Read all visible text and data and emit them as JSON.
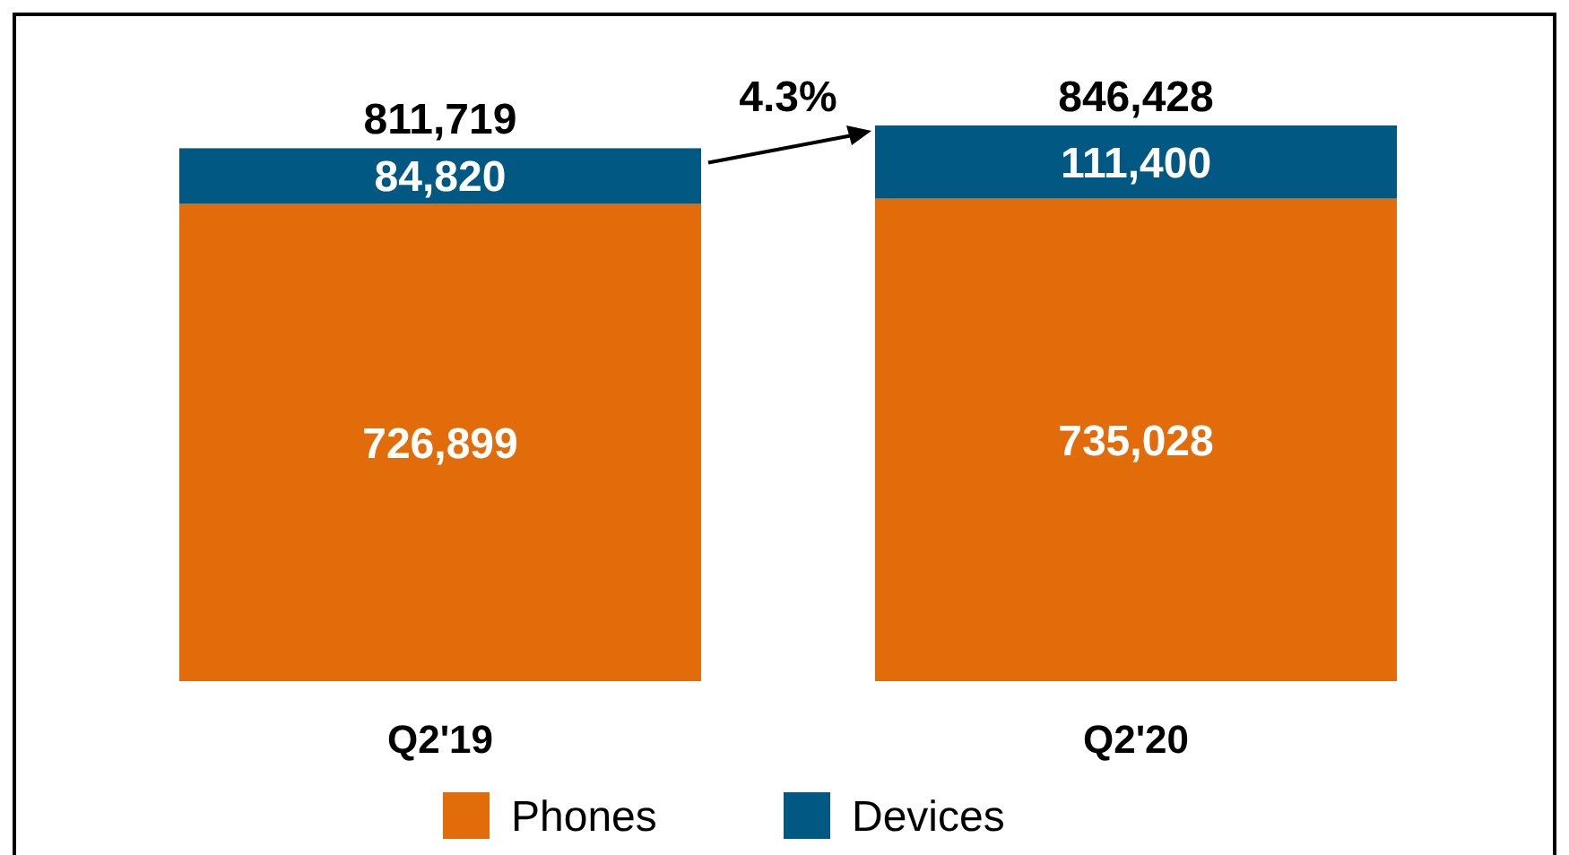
{
  "chart_data": {
    "type": "bar",
    "stacked": true,
    "categories": [
      "Q2'19",
      "Q2'20"
    ],
    "series": [
      {
        "name": "Phones",
        "color": "#e36c0a",
        "values": [
          726899,
          735028
        ],
        "value_labels": [
          "726,899",
          "735,028"
        ]
      },
      {
        "name": "Devices",
        "color": "#005883",
        "values": [
          84820,
          111400
        ],
        "value_labels": [
          "84,820",
          "111,400"
        ]
      }
    ],
    "totals": [
      "811,719",
      "846,428"
    ],
    "annotations": [
      "4.3%"
    ],
    "legend": "bottom",
    "grid": false
  }
}
